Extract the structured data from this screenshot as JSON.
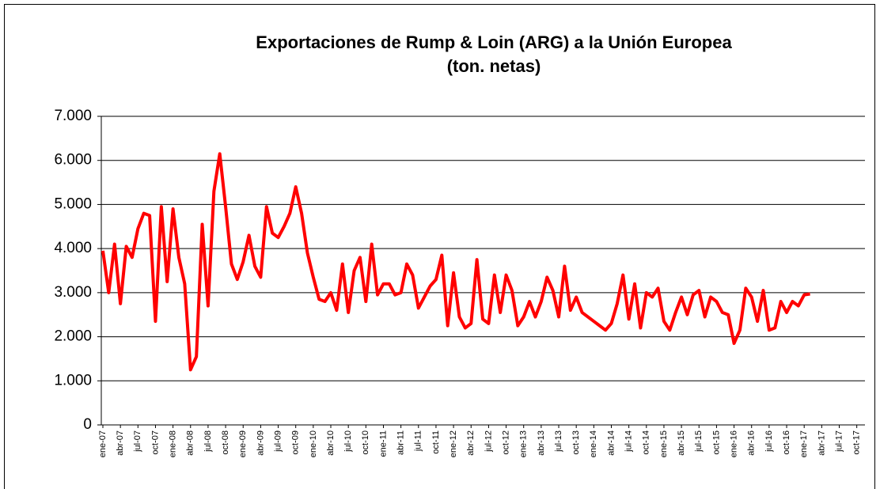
{
  "chart_data": {
    "type": "line",
    "title": [
      "Exportaciones de Rump & Loin (ARG) a la Unión Europea",
      "(ton. netas)"
    ],
    "categories": [
      "ene-07",
      null,
      null,
      "abr-07",
      null,
      null,
      "jul-07",
      null,
      null,
      "oct-07",
      null,
      null,
      "ene-08",
      null,
      null,
      "abr-08",
      null,
      null,
      "jul-08",
      null,
      null,
      "oct-08",
      null,
      null,
      "ene-09",
      null,
      null,
      "abr-09",
      null,
      null,
      "jul-09",
      null,
      null,
      "oct-09",
      null,
      null,
      "ene-10",
      null,
      null,
      "abr-10",
      null,
      null,
      "jul-10",
      null,
      null,
      "oct-10",
      null,
      null,
      "ene-11",
      null,
      null,
      "abr-11",
      null,
      null,
      "jul-11",
      null,
      null,
      "oct-11",
      null,
      null,
      "ene-12",
      null,
      null,
      "abr-12",
      null,
      null,
      "jul-12",
      null,
      null,
      "oct-12",
      null,
      null,
      "ene-13",
      null,
      null,
      "abr-13",
      null,
      null,
      "jul-13",
      null,
      null,
      "oct-13",
      null,
      null,
      "ene-14",
      null,
      null,
      "abr-14",
      null,
      null,
      "jul-14",
      null,
      null,
      "oct-14",
      null,
      null,
      "ene-15",
      null,
      null,
      "abr-15",
      null,
      null,
      "jul-15",
      null,
      null,
      "oct-15",
      null,
      null,
      "ene-16",
      null,
      null,
      "abr-16",
      null,
      null,
      "jul-16",
      null,
      null,
      "oct-16",
      null,
      null,
      "ene-17",
      null,
      null,
      "abr-17",
      null,
      null,
      "jul-17",
      null,
      null,
      "oct-17",
      null
    ],
    "values": [
      3950,
      3000,
      4100,
      2750,
      4050,
      3800,
      4450,
      4800,
      4750,
      2350,
      4950,
      3250,
      4900,
      3800,
      3200,
      1250,
      1550,
      4550,
      2700,
      5300,
      6150,
      4950,
      3650,
      3300,
      3700,
      4300,
      3600,
      3350,
      4950,
      4350,
      4250,
      4500,
      4800,
      5400,
      4800,
      3900,
      3350,
      2850,
      2800,
      3000,
      2600,
      3650,
      2550,
      3500,
      3800,
      2800,
      4100,
      2950,
      3200,
      3200,
      2950,
      3000,
      3650,
      3400,
      2650,
      2900,
      3150,
      3300,
      3850,
      2250,
      3450,
      2450,
      2200,
      2300,
      3750,
      2400,
      2300,
      3400,
      2550,
      3400,
      3050,
      2250,
      2450,
      2800,
      2450,
      2800,
      3350,
      3050,
      2450,
      3600,
      2600,
      2900,
      2550,
      2450,
      2350,
      2250,
      2150,
      2300,
      2750,
      3400,
      2400,
      3200,
      2200,
      3000,
      2900,
      3100,
      2350,
      2150,
      2550,
      2900,
      2500,
      2950,
      3050,
      2450,
      2900,
      2800,
      2550,
      2500,
      1850,
      2150,
      3100,
      2900,
      2350,
      3050,
      2150,
      2200,
      2800,
      2550,
      2800,
      2700,
      2950,
      2970,
      null,
      null,
      null,
      null,
      null,
      null,
      null,
      null,
      null
    ],
    "color": "#ff0000",
    "ylim": [
      0,
      7000
    ],
    "yticks": [
      0,
      {
        "value": 1000,
        "label": "1.000"
      },
      {
        "value": 2000,
        "label": "2.000"
      },
      {
        "value": 3000,
        "label": "3.000"
      },
      {
        "value": 4000,
        "label": "4.000"
      },
      {
        "value": 5000,
        "label": "5.000"
      },
      {
        "value": 6000,
        "label": "6.000"
      },
      {
        "value": 7000,
        "label": "7.000"
      }
    ],
    "grid": true
  }
}
